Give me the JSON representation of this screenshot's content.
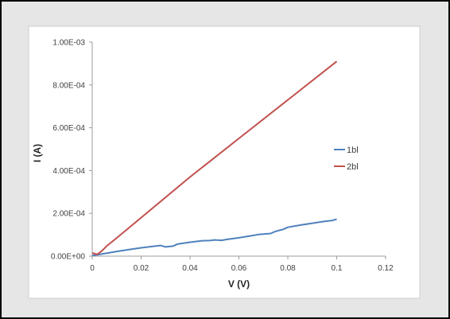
{
  "chart_data": {
    "type": "line",
    "title": "",
    "xlabel": "V (V)",
    "ylabel": "I (A)",
    "xlim": [
      0,
      0.12
    ],
    "ylim": [
      0,
      0.001
    ],
    "x_ticks": [
      0,
      0.02,
      0.04,
      0.06,
      0.08,
      0.1,
      0.12
    ],
    "x_tick_labels": [
      "0",
      "0.02",
      "0.04",
      "0.06",
      "0.08",
      "0.1",
      "0.12"
    ],
    "y_ticks": [
      0,
      0.0002,
      0.0004,
      0.0006,
      0.0008,
      0.001
    ],
    "y_tick_labels": [
      "0.00E+00",
      "2.00E-04",
      "4.00E-04",
      "6.00E-04",
      "8.00E-04",
      "1.00E-03"
    ],
    "grid": false,
    "legend_position": "right",
    "series": [
      {
        "name": "1bl",
        "color": "#4f81bd",
        "x": [
          0,
          0.005,
          0.01,
          0.015,
          0.02,
          0.025,
          0.028,
          0.03,
          0.033,
          0.035,
          0.04,
          0.045,
          0.048,
          0.05,
          0.053,
          0.055,
          0.06,
          0.065,
          0.068,
          0.07,
          0.073,
          0.075,
          0.078,
          0.08,
          0.085,
          0.09,
          0.095,
          0.098,
          0.1
        ],
        "y": [
          3e-06,
          1.2e-05,
          2.2e-05,
          3.1e-05,
          3.9e-05,
          4.6e-05,
          5e-05,
          4.3e-05,
          4.7e-05,
          5.7e-05,
          6.5e-05,
          7.2e-05,
          7.3e-05,
          7.6e-05,
          7.4e-05,
          7.8e-05,
          8.6e-05,
          9.5e-05,
          0.000101,
          0.000103,
          0.000106,
          0.000116,
          0.000125,
          0.000135,
          0.000145,
          0.000154,
          0.000163,
          0.000166,
          0.000173
        ]
      },
      {
        "name": "2bl",
        "color": "#c0504d",
        "x": [
          0,
          0.002,
          0.004,
          0.006,
          0.01,
          0.02,
          0.04,
          0.06,
          0.08,
          0.1
        ],
        "y": [
          1.5e-05,
          8e-06,
          2.5e-05,
          4.8e-05,
          8.5e-05,
          0.00018,
          0.00037,
          0.00055,
          0.00073,
          0.00091
        ]
      }
    ]
  }
}
